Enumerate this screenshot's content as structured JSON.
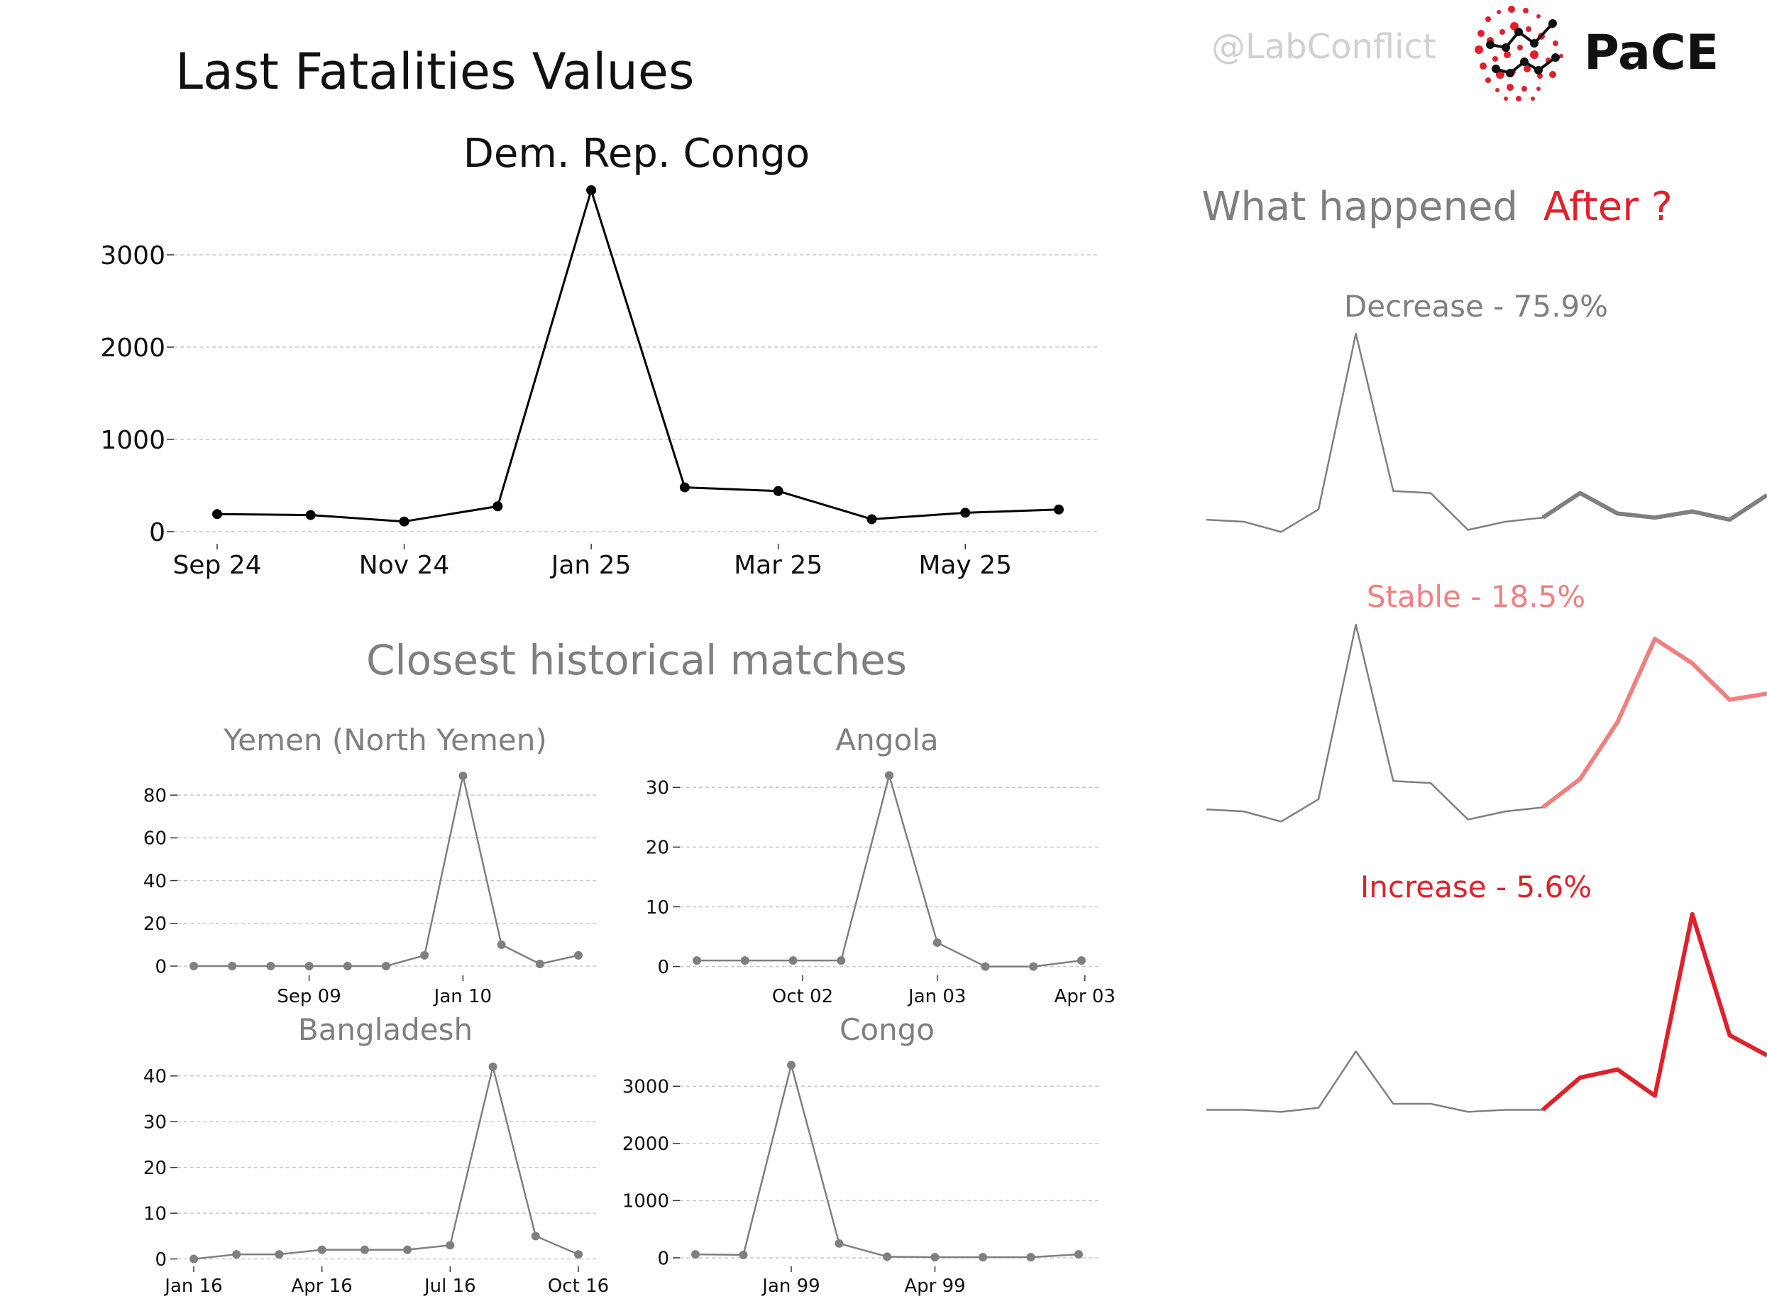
{
  "header": {
    "title": "Last Fatalities Values",
    "handle": "@LabConflict",
    "logo_text": "PaCE"
  },
  "colors": {
    "text_dark": "#111111",
    "text_gray": "#7f7f7f",
    "line_main": "#000000",
    "line_gray": "#7f7f7f",
    "stable": "#f08080",
    "increase": "#e0212b",
    "grid": "#c8c8c8",
    "logo_red": "#e0212b"
  },
  "sections": {
    "matches_title": "Closest historical matches",
    "after_question_prefix": "What happened",
    "after_question_emphasis": "After ?"
  },
  "chart_data": [
    {
      "id": "main",
      "type": "line",
      "title": "Dem. Rep. Congo",
      "x": [
        "Sep 24",
        "Oct 24",
        "Nov 24",
        "Dec 24",
        "Jan 25",
        "Feb 25",
        "Mar 25",
        "Apr 25",
        "May 25",
        "Jun 25"
      ],
      "values": [
        190,
        180,
        110,
        275,
        3700,
        480,
        440,
        135,
        205,
        240
      ],
      "xtick_labels": [
        "Sep 24",
        "Nov 24",
        "Jan 25",
        "Mar 25",
        "May 25"
      ],
      "yticks": [
        0,
        1000,
        2000,
        3000
      ],
      "ylim": [
        -100,
        3800
      ],
      "grid": true
    },
    {
      "id": "yemen",
      "type": "line",
      "title": "Yemen (North Yemen)",
      "values": [
        0,
        0,
        0,
        0,
        0,
        0,
        5,
        89,
        10,
        1,
        5
      ],
      "xtick_labels": [
        "Sep 09",
        "Jan 10"
      ],
      "yticks": [
        0,
        20,
        40,
        60,
        80
      ],
      "ylim": [
        -3,
        92
      ],
      "grid": true
    },
    {
      "id": "angola",
      "type": "line",
      "title": "Angola",
      "values": [
        1,
        1,
        1,
        1,
        32,
        4,
        0,
        0,
        1
      ],
      "xtick_labels": [
        "Oct 02",
        "Jan 03",
        "Apr 03"
      ],
      "yticks": [
        0,
        10,
        20,
        30
      ],
      "ylim": [
        -1,
        33
      ],
      "grid": true
    },
    {
      "id": "bangladesh",
      "type": "line",
      "title": "Bangladesh",
      "values": [
        0,
        1,
        1,
        2,
        2,
        2,
        3,
        42,
        5,
        1
      ],
      "xtick_labels": [
        "Jan 16",
        "Apr 16",
        "Jul 16",
        "Oct 16"
      ],
      "yticks": [
        0,
        10,
        20,
        30,
        40
      ],
      "ylim": [
        -1,
        44
      ],
      "grid": true
    },
    {
      "id": "congo",
      "type": "line",
      "title": "Congo",
      "values": [
        60,
        50,
        3370,
        250,
        20,
        10,
        10,
        10,
        60
      ],
      "xtick_labels": [
        "Jan 99",
        "Apr 99"
      ],
      "yticks": [
        0,
        1000,
        2000,
        3000
      ],
      "ylim": [
        -100,
        3500
      ],
      "grid": true
    },
    {
      "id": "decrease",
      "type": "line",
      "title": "Decrease - 75.9%",
      "history": [
        0.09,
        0.08,
        0.03,
        0.14,
        1.0,
        0.23,
        0.22,
        0.04,
        0.08,
        0.1
      ],
      "future": [
        0.1,
        0.22,
        0.12,
        0.1,
        0.13,
        0.09,
        0.21
      ]
    },
    {
      "id": "stable",
      "type": "line",
      "title": "Stable - 18.5%",
      "history": [
        0.09,
        0.08,
        0.03,
        0.14,
        1.0,
        0.23,
        0.22,
        0.04,
        0.08,
        0.1
      ],
      "future": [
        0.1,
        0.24,
        0.52,
        0.93,
        0.81,
        0.63,
        0.66
      ]
    },
    {
      "id": "increase",
      "type": "line",
      "title": "Increase - 5.6%",
      "history": [
        0.03,
        0.03,
        0.02,
        0.04,
        0.32,
        0.06,
        0.06,
        0.02,
        0.03,
        0.03
      ],
      "future": [
        0.03,
        0.19,
        0.23,
        0.1,
        1.0,
        0.4,
        0.3
      ]
    }
  ]
}
